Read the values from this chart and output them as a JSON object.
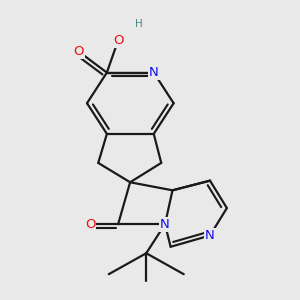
{
  "bg_color": "#e9e9e9",
  "bond_color": "#1a1a1a",
  "bond_width": 1.6,
  "dbo": 0.012,
  "atom_colors": {
    "N": "#1010ee",
    "O": "#ee1010",
    "OH": "#4a8888",
    "C": "#1a1a1a"
  },
  "fs": 9.5
}
